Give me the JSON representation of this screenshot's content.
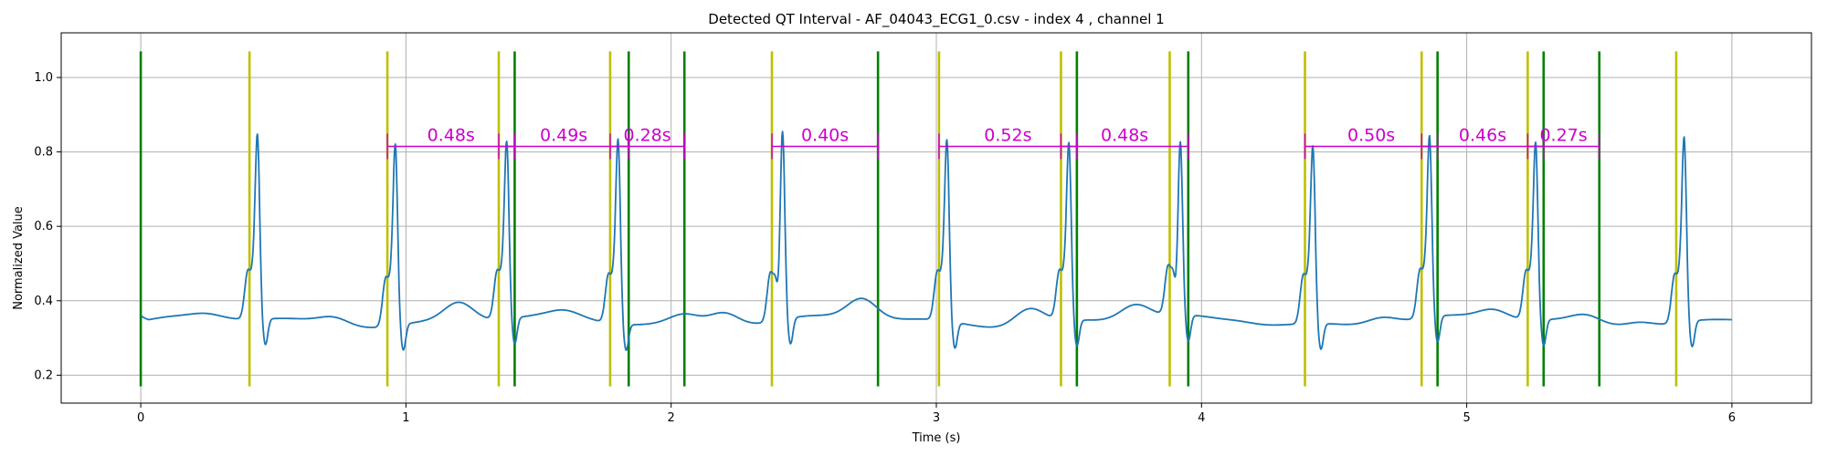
{
  "chart_data": {
    "type": "line",
    "title": "Detected QT Interval - AF_04043_ECG1_0.csv - index 4 , channel 1",
    "xlabel": "Time (s)",
    "ylabel": "Normalized Value",
    "xlim": [
      -0.3,
      6.3
    ],
    "ylim": [
      0.125,
      1.12
    ],
    "xticks": [
      0,
      1,
      2,
      3,
      4,
      5,
      6
    ],
    "yticks": [
      0.2,
      0.4,
      0.6,
      0.8,
      1.0
    ],
    "ytick_labels": [
      "0.2",
      "0.4",
      "0.6",
      "0.8",
      "1.0"
    ],
    "grid": true,
    "colors": {
      "signal": "#1f77b4",
      "q_marker": "#bfbf00",
      "t_marker": "#008000",
      "qt_interval": "#cc00cc",
      "grid": "#b0b0b0"
    },
    "vline_range": [
      0.17,
      1.07
    ],
    "q_markers": [
      0.41,
      0.93,
      1.35,
      1.77,
      2.38,
      3.01,
      3.47,
      3.88,
      4.39,
      4.83,
      5.23,
      5.79
    ],
    "t_markers": [
      0.0,
      1.41,
      1.84,
      2.05,
      2.78,
      3.53,
      3.95,
      4.89,
      5.29,
      5.5
    ],
    "qt_level": 0.815,
    "qt_intervals": [
      {
        "start": 0.93,
        "end": 1.41,
        "label": "0.48s"
      },
      {
        "start": 1.35,
        "end": 1.84,
        "label": "0.49s"
      },
      {
        "start": 1.77,
        "end": 2.05,
        "label": "0.28s"
      },
      {
        "start": 2.38,
        "end": 2.78,
        "label": "0.40s"
      },
      {
        "start": 3.01,
        "end": 3.53,
        "label": "0.52s"
      },
      {
        "start": 3.47,
        "end": 3.95,
        "label": "0.48s"
      },
      {
        "start": 4.39,
        "end": 4.89,
        "label": "0.50s"
      },
      {
        "start": 4.83,
        "end": 5.29,
        "label": "0.46s"
      },
      {
        "start": 5.23,
        "end": 5.5,
        "label": "0.27s"
      }
    ],
    "signal_baseline": 0.345,
    "beats": [
      {
        "q": 0.41,
        "peak": 0.44,
        "r": 0.93
      },
      {
        "q": 0.93,
        "peak": 0.96,
        "r": 0.92
      },
      {
        "q": 1.35,
        "peak": 1.38,
        "r": 0.91
      },
      {
        "q": 1.77,
        "peak": 1.8,
        "r": 0.93
      },
      {
        "q": 2.38,
        "peak": 2.42,
        "r": 0.95
      },
      {
        "q": 3.01,
        "peak": 3.04,
        "r": 0.92
      },
      {
        "q": 3.47,
        "peak": 3.5,
        "r": 0.91
      },
      {
        "q": 3.88,
        "peak": 3.92,
        "r": 0.91
      },
      {
        "q": 4.39,
        "peak": 4.42,
        "r": 0.91
      },
      {
        "q": 4.83,
        "peak": 4.86,
        "r": 0.92
      },
      {
        "q": 5.23,
        "peak": 5.26,
        "r": 0.91
      },
      {
        "q": 5.79,
        "peak": 5.82,
        "r": 0.93
      }
    ],
    "t_waves": [
      {
        "x": 0.25,
        "v": 0.355
      },
      {
        "x": 0.73,
        "v": 0.365
      },
      {
        "x": 1.2,
        "v": 0.395
      },
      {
        "x": 1.6,
        "v": 0.36
      },
      {
        "x": 2.05,
        "v": 0.37
      },
      {
        "x": 2.2,
        "v": 0.38
      },
      {
        "x": 2.72,
        "v": 0.4
      },
      {
        "x": 3.35,
        "v": 0.39
      },
      {
        "x": 3.75,
        "v": 0.385
      },
      {
        "x": 4.15,
        "v": 0.35
      },
      {
        "x": 4.68,
        "v": 0.365
      },
      {
        "x": 5.1,
        "v": 0.37
      },
      {
        "x": 5.45,
        "v": 0.365
      },
      {
        "x": 5.65,
        "v": 0.36
      }
    ],
    "signal_end": {
      "x": 6.0,
      "v": 0.333
    }
  }
}
